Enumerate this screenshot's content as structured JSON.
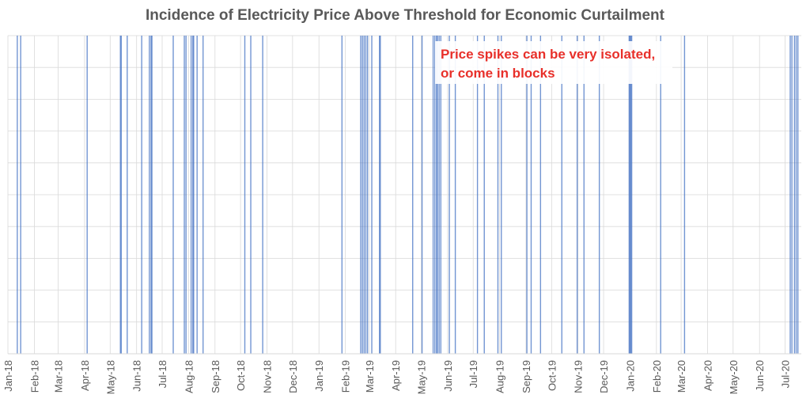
{
  "chart_data": {
    "type": "bar",
    "title": "Incidence of Electricity Price Above Threshold for Economic Curtailment",
    "xlabel": "",
    "ylabel": "",
    "x_start": "2018-01-01",
    "x_end": "2020-07-20",
    "grid": true,
    "tick_labels": [
      "Jan-18",
      "Feb-18",
      "Mar-18",
      "Apr-18",
      "May-18",
      "Jun-18",
      "Jul-18",
      "Aug-18",
      "Sep-18",
      "Oct-18",
      "Nov-18",
      "Dec-18",
      "Jan-19",
      "Feb-19",
      "Mar-19",
      "Apr-19",
      "May-19",
      "Jun-19",
      "Jul-19",
      "Aug-19",
      "Sep-19",
      "Oct-19",
      "Nov-19",
      "Dec-19",
      "Jan-20",
      "Feb-20",
      "Mar-20",
      "Apr-20",
      "May-20",
      "Jun-20",
      "Jul-20"
    ],
    "tick_dates": [
      "2018-01-01",
      "2018-02-01",
      "2018-03-01",
      "2018-04-01",
      "2018-05-01",
      "2018-06-01",
      "2018-07-01",
      "2018-08-01",
      "2018-09-01",
      "2018-10-01",
      "2018-11-01",
      "2018-12-01",
      "2019-01-01",
      "2019-02-01",
      "2019-03-01",
      "2019-04-01",
      "2019-05-01",
      "2019-06-01",
      "2019-07-01",
      "2019-08-01",
      "2019-09-01",
      "2019-10-01",
      "2019-11-01",
      "2019-12-01",
      "2020-01-01",
      "2020-02-01",
      "2020-03-01",
      "2020-04-01",
      "2020-05-01",
      "2020-06-01",
      "2020-07-01"
    ],
    "event_dates": [
      "2018-01-12",
      "2018-01-16",
      "2018-04-04",
      "2018-05-13",
      "2018-05-14",
      "2018-05-21",
      "2018-06-07",
      "2018-06-16",
      "2018-06-18",
      "2018-06-19",
      "2018-07-14",
      "2018-07-27",
      "2018-07-29",
      "2018-08-04",
      "2018-08-06",
      "2018-08-07",
      "2018-08-11",
      "2018-08-18",
      "2018-10-06",
      "2018-10-13",
      "2018-10-27",
      "2019-01-28",
      "2019-02-19",
      "2019-02-21",
      "2019-02-23",
      "2019-02-25",
      "2019-02-27",
      "2019-03-04",
      "2019-03-13",
      "2019-03-14",
      "2019-04-21",
      "2019-05-02",
      "2019-05-15",
      "2019-05-17",
      "2019-05-19",
      "2019-05-20",
      "2019-05-22",
      "2019-05-24",
      "2019-06-03",
      "2019-06-10",
      "2019-07-06",
      "2019-07-14",
      "2019-07-30",
      "2019-08-03",
      "2019-09-02",
      "2019-09-07",
      "2019-09-18",
      "2019-10-13",
      "2019-10-31",
      "2019-11-08",
      "2019-11-26",
      "2019-12-31",
      "2020-01-01",
      "2020-01-02",
      "2020-01-03",
      "2020-02-06",
      "2020-03-05",
      "2020-07-07",
      "2020-07-09",
      "2020-07-12",
      "2020-07-14",
      "2020-07-16"
    ],
    "value_per_event": 1,
    "ylim": [
      0,
      1
    ],
    "annotation": [
      "Price spikes can be very isolated,",
      "or come in blocks"
    ],
    "colors": {
      "event": "#4472c4",
      "annotation": "#e8302a",
      "grid": "#d9d9d9"
    }
  }
}
